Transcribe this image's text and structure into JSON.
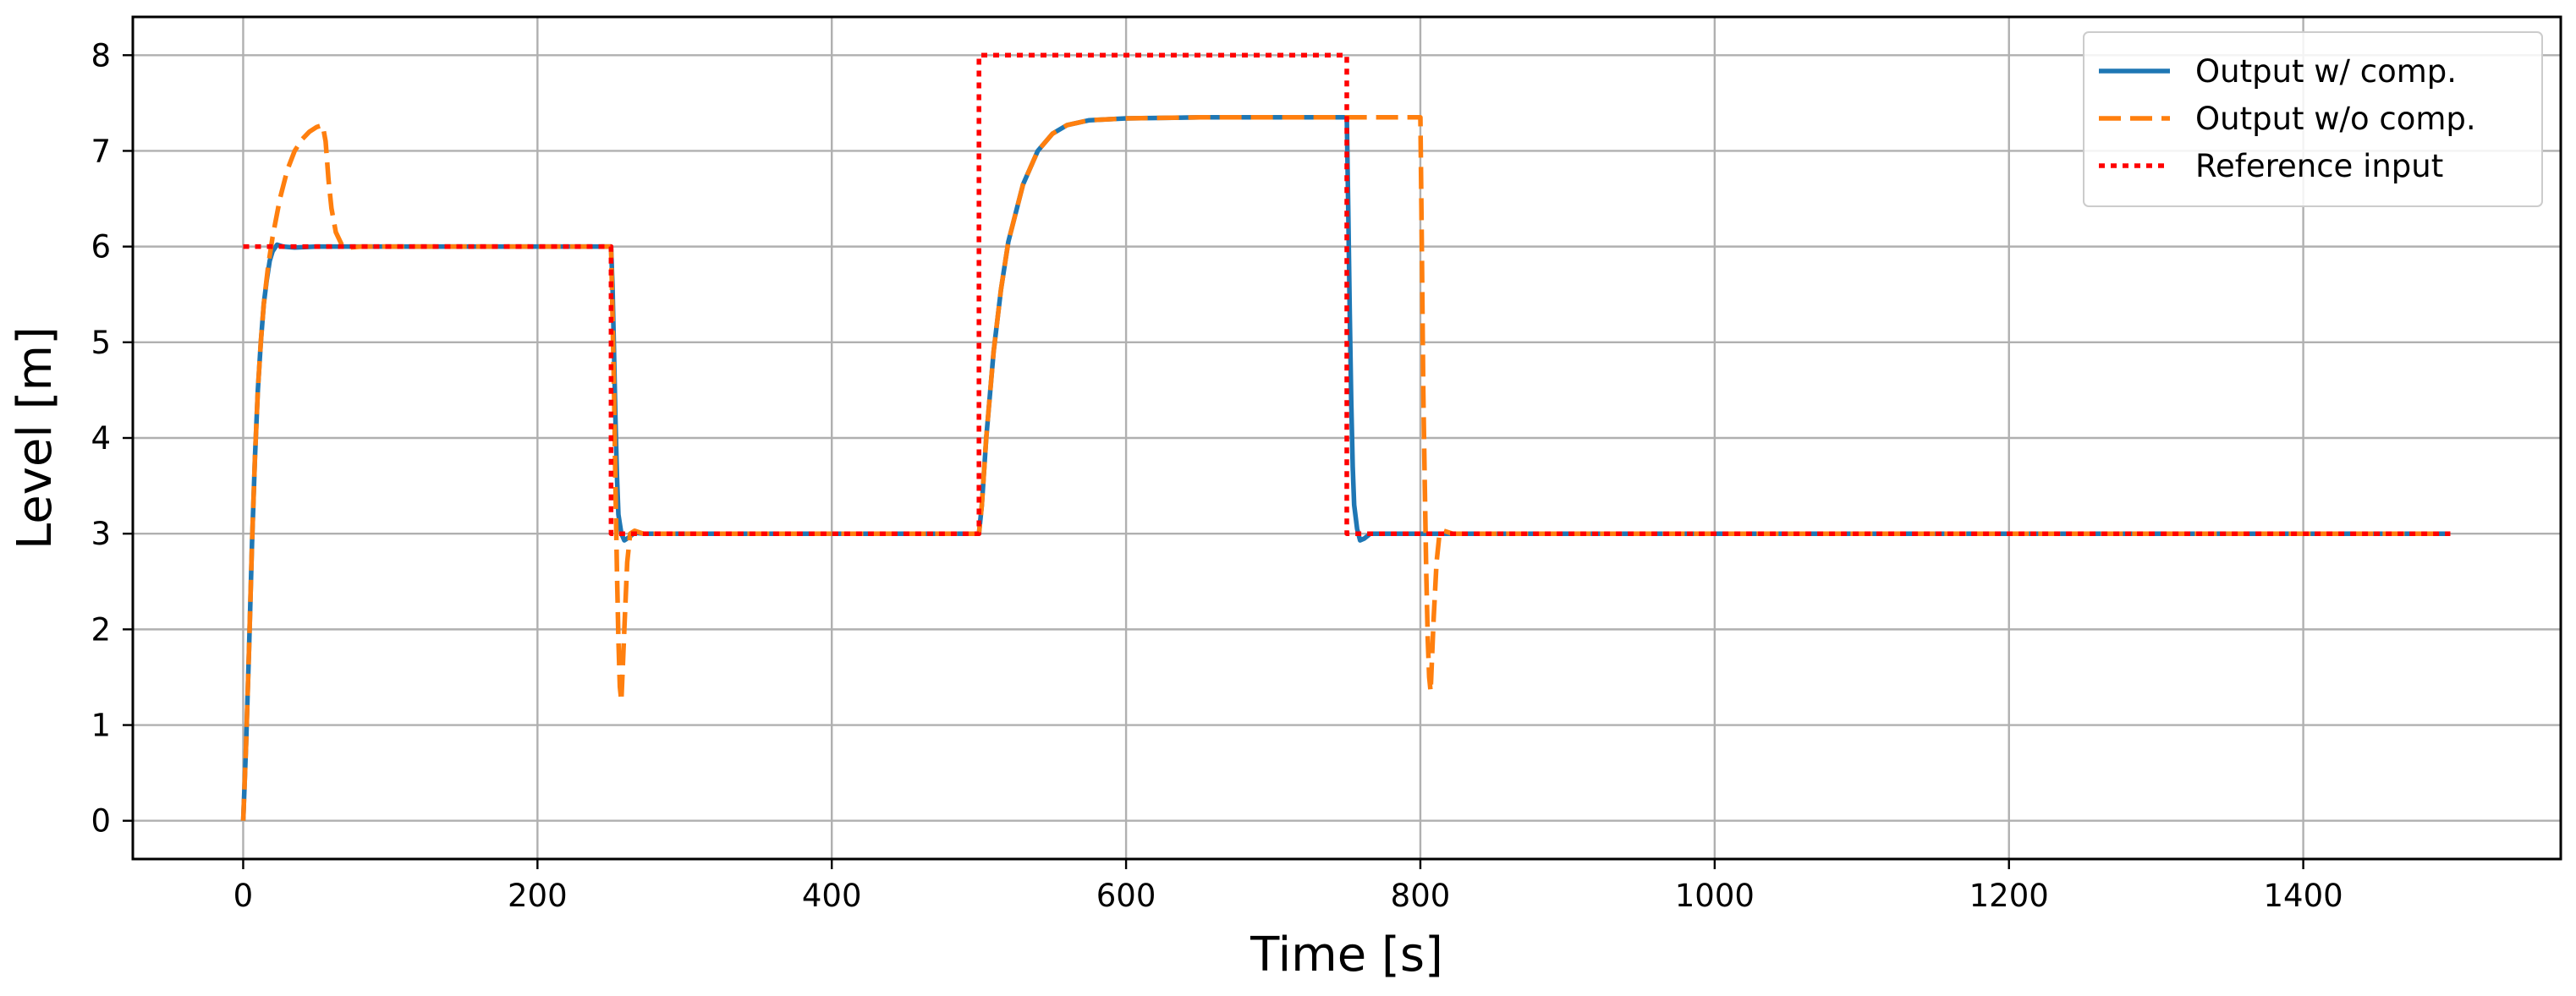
{
  "chart_data": {
    "type": "line",
    "title": "",
    "xlabel": "Time [s]",
    "ylabel": "Level [m]",
    "xlim": [
      -75,
      1575
    ],
    "ylim": [
      -0.4,
      8.4
    ],
    "xticks": [
      0,
      200,
      400,
      600,
      800,
      1000,
      1200,
      1400
    ],
    "yticks": [
      0,
      1,
      2,
      3,
      4,
      5,
      6,
      7,
      8
    ],
    "grid": true,
    "legend_position": "top-right",
    "series": [
      {
        "name": "Output w/ comp.",
        "color": "#1f77b4",
        "style": "solid",
        "points": [
          [
            0,
            0
          ],
          [
            2,
            0.8
          ],
          [
            4,
            1.8
          ],
          [
            6,
            2.9
          ],
          [
            8,
            3.8
          ],
          [
            10,
            4.5
          ],
          [
            12,
            5.0
          ],
          [
            14,
            5.4
          ],
          [
            16,
            5.65
          ],
          [
            18,
            5.85
          ],
          [
            20,
            5.95
          ],
          [
            23,
            6.02
          ],
          [
            27,
            6.0
          ],
          [
            35,
            5.99
          ],
          [
            50,
            6.0
          ],
          [
            100,
            6.0
          ],
          [
            150,
            6.0
          ],
          [
            200,
            6.0
          ],
          [
            250,
            6.0
          ],
          [
            251,
            5.6
          ],
          [
            252,
            4.9
          ],
          [
            253,
            4.2
          ],
          [
            254,
            3.6
          ],
          [
            255,
            3.2
          ],
          [
            257,
            3.0
          ],
          [
            259,
            2.93
          ],
          [
            262,
            2.96
          ],
          [
            266,
            3.01
          ],
          [
            272,
            3.0
          ],
          [
            300,
            3.0
          ],
          [
            400,
            3.0
          ],
          [
            500,
            3.0
          ],
          [
            502,
            3.3
          ],
          [
            505,
            4.0
          ],
          [
            510,
            4.9
          ],
          [
            515,
            5.55
          ],
          [
            520,
            6.05
          ],
          [
            530,
            6.65
          ],
          [
            540,
            7.0
          ],
          [
            550,
            7.18
          ],
          [
            560,
            7.27
          ],
          [
            575,
            7.32
          ],
          [
            600,
            7.34
          ],
          [
            650,
            7.35
          ],
          [
            700,
            7.35
          ],
          [
            750,
            7.35
          ],
          [
            751,
            6.4
          ],
          [
            752,
            5.3
          ],
          [
            753,
            4.4
          ],
          [
            754,
            3.7
          ],
          [
            755,
            3.3
          ],
          [
            757,
            3.05
          ],
          [
            759,
            2.93
          ],
          [
            762,
            2.95
          ],
          [
            766,
            3.0
          ],
          [
            780,
            3.0
          ],
          [
            900,
            3.0
          ],
          [
            1000,
            3.0
          ],
          [
            1200,
            3.0
          ],
          [
            1400,
            3.0
          ],
          [
            1500,
            3.0
          ]
        ]
      },
      {
        "name": "Output w/o comp.",
        "color": "#ff7f0e",
        "style": "dashed",
        "points": [
          [
            0,
            0
          ],
          [
            2,
            0.8
          ],
          [
            4,
            1.8
          ],
          [
            6,
            2.9
          ],
          [
            8,
            3.8
          ],
          [
            10,
            4.5
          ],
          [
            12,
            5.0
          ],
          [
            14,
            5.4
          ],
          [
            17,
            5.8
          ],
          [
            20,
            6.1
          ],
          [
            25,
            6.5
          ],
          [
            30,
            6.8
          ],
          [
            35,
            7.0
          ],
          [
            40,
            7.12
          ],
          [
            45,
            7.2
          ],
          [
            50,
            7.25
          ],
          [
            54,
            7.27
          ],
          [
            56,
            7.1
          ],
          [
            58,
            6.7
          ],
          [
            60,
            6.4
          ],
          [
            63,
            6.15
          ],
          [
            67,
            6.02
          ],
          [
            72,
            5.99
          ],
          [
            80,
            6.0
          ],
          [
            100,
            6.0
          ],
          [
            150,
            6.0
          ],
          [
            200,
            6.0
          ],
          [
            250,
            6.0
          ],
          [
            251,
            5.3
          ],
          [
            252,
            4.5
          ],
          [
            253,
            3.5
          ],
          [
            254,
            2.6
          ],
          [
            255,
            1.9
          ],
          [
            256,
            1.4
          ],
          [
            257,
            1.25
          ],
          [
            259,
            2.0
          ],
          [
            261,
            2.7
          ],
          [
            263,
            3.0
          ],
          [
            266,
            3.03
          ],
          [
            272,
            3.0
          ],
          [
            300,
            3.0
          ],
          [
            400,
            3.0
          ],
          [
            500,
            3.0
          ],
          [
            502,
            3.3
          ],
          [
            505,
            4.0
          ],
          [
            510,
            4.9
          ],
          [
            515,
            5.55
          ],
          [
            520,
            6.05
          ],
          [
            530,
            6.65
          ],
          [
            540,
            7.0
          ],
          [
            550,
            7.18
          ],
          [
            560,
            7.27
          ],
          [
            575,
            7.32
          ],
          [
            600,
            7.34
          ],
          [
            650,
            7.35
          ],
          [
            700,
            7.35
          ],
          [
            750,
            7.35
          ],
          [
            800,
            7.35
          ],
          [
            801,
            6.0
          ],
          [
            802,
            4.5
          ],
          [
            803,
            3.5
          ],
          [
            804,
            2.6
          ],
          [
            805,
            1.9
          ],
          [
            806,
            1.5
          ],
          [
            807,
            1.35
          ],
          [
            809,
            2.1
          ],
          [
            811,
            2.7
          ],
          [
            813,
            3.0
          ],
          [
            816,
            3.03
          ],
          [
            822,
            3.0
          ],
          [
            900,
            3.0
          ],
          [
            1000,
            3.0
          ],
          [
            1200,
            3.0
          ],
          [
            1400,
            3.0
          ],
          [
            1500,
            3.0
          ]
        ]
      },
      {
        "name": "Reference input",
        "color": "#ff0000",
        "style": "dotted",
        "points": [
          [
            0,
            6
          ],
          [
            250,
            6
          ],
          [
            250,
            3
          ],
          [
            500,
            3
          ],
          [
            500,
            8
          ],
          [
            750,
            8
          ],
          [
            750,
            3
          ],
          [
            1500,
            3
          ]
        ]
      }
    ]
  }
}
